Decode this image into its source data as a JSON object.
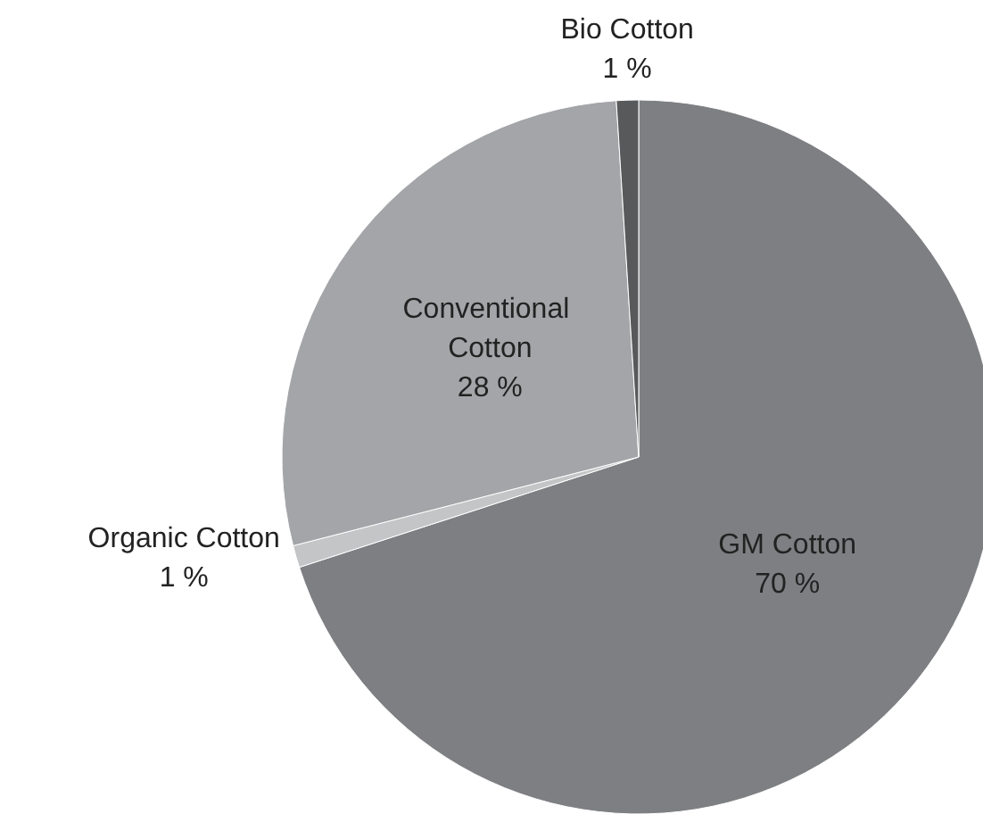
{
  "chart_data": {
    "type": "pie",
    "categories": [
      "GM Cotton",
      "Organic Cotton",
      "Conventional Cotton",
      "Bio Cotton"
    ],
    "values": [
      70,
      1,
      28,
      1
    ],
    "value_labels": [
      "70 %",
      "1 %",
      "28 %",
      "1 %"
    ],
    "colors": [
      "#7e7f82",
      "#c4c5c7",
      "#a4a5a8",
      "#58595b"
    ],
    "legend": false
  }
}
